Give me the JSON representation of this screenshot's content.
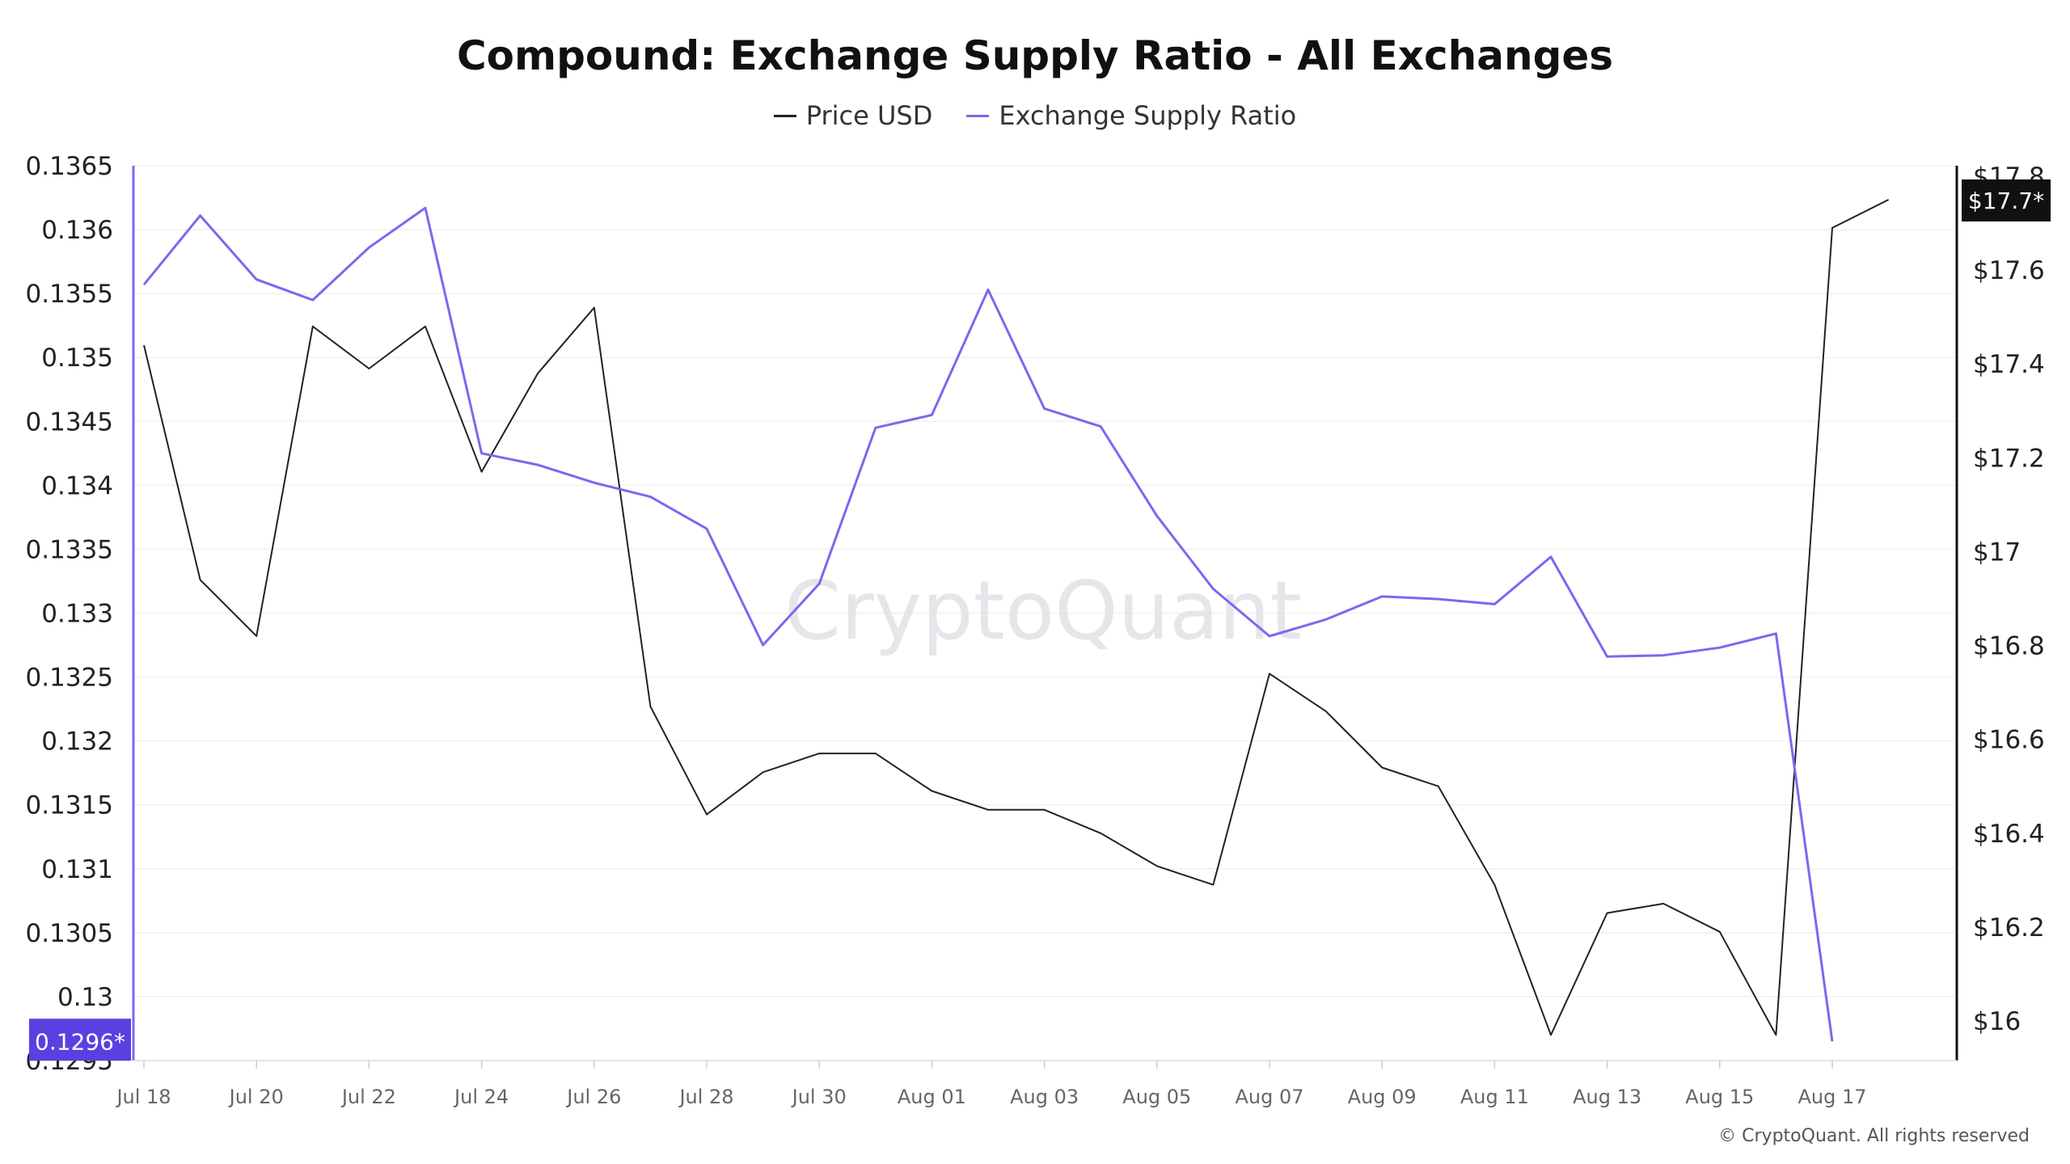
{
  "chart_data": {
    "type": "line",
    "title": "Compound: Exchange Supply Ratio - All Exchanges",
    "x": [
      "Jul 18",
      "Jul 19",
      "Jul 20",
      "Jul 21",
      "Jul 22",
      "Jul 23",
      "Jul 24",
      "Jul 25",
      "Jul 26",
      "Jul 27",
      "Jul 28",
      "Jul 29",
      "Jul 30",
      "Jul 31",
      "Aug 01",
      "Aug 02",
      "Aug 03",
      "Aug 04",
      "Aug 05",
      "Aug 06",
      "Aug 07",
      "Aug 08",
      "Aug 09",
      "Aug 10",
      "Aug 11",
      "Aug 12",
      "Aug 13",
      "Aug 14",
      "Aug 15",
      "Aug 16",
      "Aug 17",
      "Aug 18"
    ],
    "x_tick_labels": [
      "Jul 18",
      "Jul 20",
      "Jul 22",
      "Jul 24",
      "Jul 26",
      "Jul 28",
      "Jul 30",
      "Aug 01",
      "Aug 03",
      "Aug 05",
      "Aug 07",
      "Aug 09",
      "Aug 11",
      "Aug 13",
      "Aug 15",
      "Aug 17"
    ],
    "series": [
      {
        "name": "Price USD",
        "axis": "right",
        "color": "#222222",
        "values": [
          17.44,
          16.94,
          16.82,
          17.48,
          17.39,
          17.48,
          17.17,
          17.38,
          17.52,
          16.67,
          16.44,
          16.53,
          16.57,
          16.57,
          16.49,
          16.45,
          16.45,
          16.4,
          16.33,
          16.29,
          16.74,
          16.66,
          16.54,
          16.5,
          16.29,
          15.97,
          16.23,
          16.25,
          16.19,
          15.97,
          17.69,
          17.75
        ]
      },
      {
        "name": "Exchange Supply Ratio",
        "axis": "left",
        "color": "#7b68ee",
        "values": [
          0.13557,
          0.13611,
          0.13561,
          0.13545,
          0.13586,
          0.13617,
          0.13425,
          0.13416,
          0.13402,
          0.13391,
          0.13366,
          0.13275,
          0.13323,
          0.13445,
          0.13455,
          0.13553,
          0.1346,
          0.13446,
          0.13376,
          0.13319,
          0.13282,
          0.13295,
          0.13313,
          0.13311,
          0.13307,
          0.13344,
          0.13266,
          0.13267,
          0.13273,
          0.13284,
          0.12965,
          null
        ]
      }
    ],
    "y_left": {
      "ticks": [
        "0.1295",
        "0.13",
        "0.1305",
        "0.131",
        "0.1315",
        "0.132",
        "0.1325",
        "0.133",
        "0.1335",
        "0.134",
        "0.1345",
        "0.135",
        "0.1355",
        "0.136",
        "0.1365"
      ],
      "ylim": [
        0.1295,
        0.1365
      ]
    },
    "y_right": {
      "ticks": [
        "$16",
        "$16.2",
        "$16.4",
        "$16.6",
        "$16.8",
        "$17",
        "$17.2",
        "$17.4",
        "$17.6",
        "$17.8"
      ],
      "ylim": [
        16.0,
        17.8
      ]
    },
    "left_badge": "0.1296*",
    "right_badge": "$17.7*",
    "left_badge_color": "#5b3fe0",
    "right_badge_color": "#111111",
    "grid": true,
    "legend_position": "top-center",
    "watermark": "CryptoQuant"
  },
  "copyright": "© CryptoQuant. All rights reserved"
}
